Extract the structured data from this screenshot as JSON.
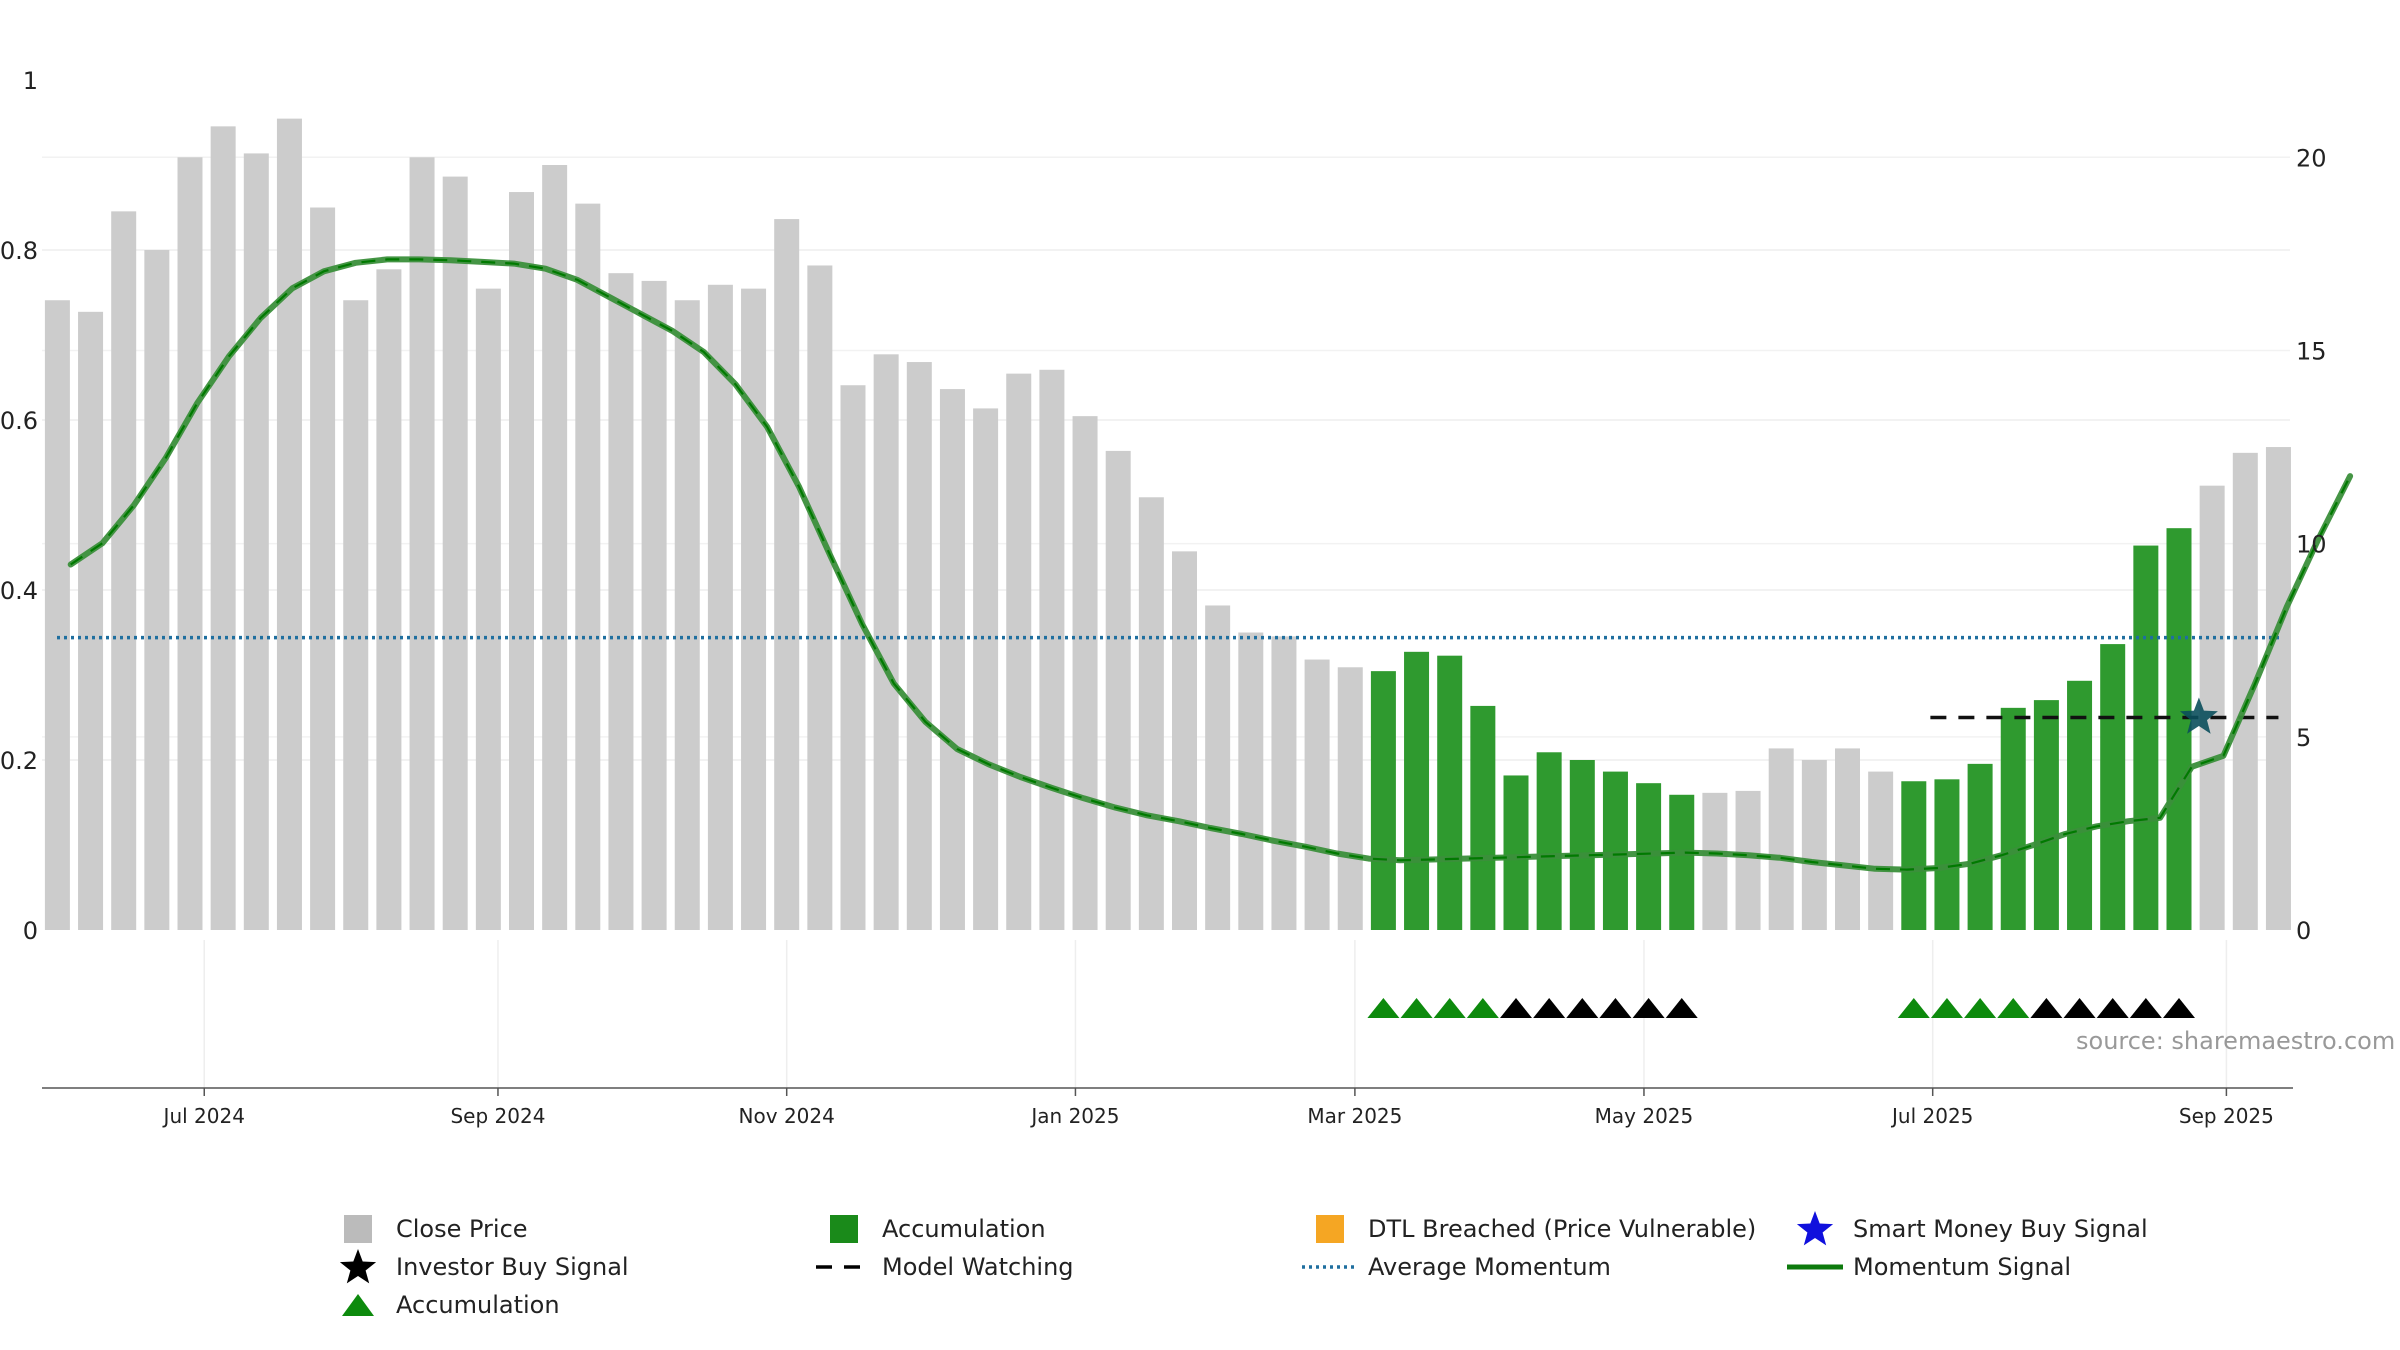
{
  "chart_data": {
    "type": "bar",
    "source": "source: sharemaestro.com",
    "left_axis": {
      "ticks": [
        "0",
        "0.2",
        "0.4",
        "0.6",
        "0.8",
        "1"
      ],
      "range": [
        0,
        1
      ]
    },
    "right_axis": {
      "ticks": [
        "0",
        "5",
        "10",
        "15",
        "20"
      ],
      "range": [
        0,
        22
      ]
    },
    "x_ticks": [
      "Jul 2024",
      "Sep 2024",
      "Nov 2024",
      "Jan 2025",
      "Mar 2025",
      "May 2025",
      "Jul 2025",
      "Sep 2025"
    ],
    "x_tick_weeks": [
      4.43,
      13.29,
      22.0,
      30.71,
      39.14,
      47.86,
      56.57,
      65.43
    ],
    "close_price": [
      16.3,
      16.0,
      18.6,
      17.6,
      20.0,
      20.8,
      20.1,
      21.0,
      18.7,
      16.3,
      17.1,
      20.0,
      19.5,
      16.6,
      19.1,
      19.8,
      18.8,
      17.0,
      16.8,
      16.3,
      16.7,
      16.6,
      18.4,
      17.2,
      14.1,
      14.9,
      14.7,
      14.0,
      13.5,
      14.4,
      14.5,
      13.3,
      12.4,
      11.2,
      9.8,
      8.4,
      7.7,
      7.6,
      7.0,
      6.8,
      6.7,
      7.2,
      7.1,
      5.8,
      4.0,
      4.6,
      4.4,
      4.1,
      3.8,
      3.5,
      3.55,
      3.6,
      4.7,
      4.4,
      4.7,
      4.1,
      3.85,
      3.9,
      4.3,
      5.75,
      5.95,
      6.45,
      7.4,
      9.95,
      10.4,
      11.5,
      12.35,
      12.5
    ],
    "accumulation_weeks": [
      40,
      41,
      42,
      43,
      44,
      45,
      46,
      47,
      48,
      49,
      56,
      57,
      58,
      59,
      60,
      61,
      62,
      63,
      64
    ],
    "momentum": [
      0.43,
      0.455,
      0.5,
      0.555,
      0.62,
      0.675,
      0.72,
      0.755,
      0.775,
      0.785,
      0.789,
      0.789,
      0.788,
      0.786,
      0.784,
      0.778,
      0.765,
      0.745,
      0.725,
      0.705,
      0.68,
      0.642,
      0.592,
      0.522,
      0.44,
      0.36,
      0.29,
      0.245,
      0.213,
      0.195,
      0.18,
      0.167,
      0.155,
      0.144,
      0.135,
      0.128,
      0.12,
      0.113,
      0.105,
      0.098,
      0.09,
      0.084,
      0.082,
      0.083,
      0.084,
      0.085,
      0.086,
      0.087,
      0.088,
      0.089,
      0.09,
      0.091,
      0.09,
      0.088,
      0.085,
      0.08,
      0.076,
      0.072,
      0.071,
      0.073,
      0.078,
      0.088,
      0.1,
      0.113,
      0.122,
      0.128,
      0.132,
      0.192,
      0.205,
      0.29,
      0.38,
      0.46,
      0.534
    ],
    "momentum_x_start": 0.4,
    "average_momentum": 0.344,
    "model_watching": {
      "from_week": 56.5,
      "to_week": 67.0,
      "value": 0.25
    },
    "smart_money_buy": {
      "week": 64.6,
      "value": 0.25
    },
    "triangles_green": [
      40,
      41,
      42,
      43,
      56,
      57,
      58,
      59
    ],
    "triangles_black": [
      44,
      45,
      46,
      47,
      48,
      49,
      60,
      61,
      62,
      63,
      64
    ],
    "legend": [
      {
        "label": "Close Price",
        "icon": "square",
        "color": "#bbbbbb"
      },
      {
        "label": "Accumulation",
        "icon": "square",
        "color": "#1a8a1a"
      },
      {
        "label": "DTL Breached (Price Vulnerable)",
        "icon": "square",
        "color": "#f5a623"
      },
      {
        "label": "Smart Money Buy Signal",
        "icon": "star",
        "color": "#1010dd"
      },
      {
        "label": "Investor Buy Signal",
        "icon": "star",
        "color": "#000000"
      },
      {
        "label": "Model Watching",
        "icon": "dash",
        "color": "#000000"
      },
      {
        "label": "Average Momentum",
        "icon": "dot",
        "color": "#1f6f9f"
      },
      {
        "label": "Momentum Signal",
        "icon": "line",
        "color": "#0d7a0d"
      },
      {
        "label": "Accumulation",
        "icon": "triangle",
        "color": "#0d8a0d"
      }
    ],
    "colors": {
      "close_price": "#cccccc",
      "accumulation": "#2f9a2f",
      "momentum": "#3b8f3b",
      "momentum_dash": "#007a00",
      "average": "#1f6f9f",
      "watch": "#111111",
      "star": "#0b4f5c"
    }
  }
}
